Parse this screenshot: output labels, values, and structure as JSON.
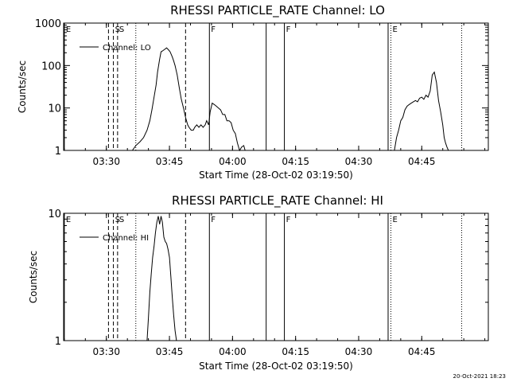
{
  "chart_data": [
    {
      "type": "line",
      "title": "RHESSI PARTICLE_RATE Channel: LO",
      "xlabel": "Start Time (28-Oct-02 03:19:50)",
      "ylabel": "Counts/sec",
      "yscale": "log",
      "ylim": [
        1,
        1000
      ],
      "xlim": [
        "03:19:50",
        "05:00:50"
      ],
      "x_ticks": [
        "03:30",
        "03:45",
        "04:00",
        "04:15",
        "04:30",
        "04:45"
      ],
      "y_ticks": [
        "1",
        "10",
        "100",
        "1000"
      ],
      "legend": "Channel: LO",
      "legend_position": "top-left",
      "markers": [
        {
          "time": "03:20:00",
          "style": "solid",
          "label": "E"
        },
        {
          "time": "03:30:30",
          "style": "dashed",
          "label": ""
        },
        {
          "time": "03:31:40",
          "style": "dashed",
          "label": "S"
        },
        {
          "time": "03:32:40",
          "style": "dashed",
          "label": "S"
        },
        {
          "time": "03:37:00",
          "style": "dotted",
          "label": ""
        },
        {
          "time": "03:48:50",
          "style": "dashed",
          "label": ""
        },
        {
          "time": "03:54:30",
          "style": "solid",
          "label": "F"
        },
        {
          "time": "04:08:00",
          "style": "solid",
          "label": ""
        },
        {
          "time": "04:12:20",
          "style": "solid",
          "label": "F"
        },
        {
          "time": "04:37:00",
          "style": "solid",
          "label": ""
        },
        {
          "time": "04:37:40",
          "style": "dotted",
          "label": "E"
        },
        {
          "time": "04:54:30",
          "style": "dotted",
          "label": ""
        }
      ],
      "series": [
        {
          "name": "Channel: LO",
          "segments": [
            {
              "time": [
                "03:36:10",
                "03:37:00",
                "03:38:00",
                "03:38:50",
                "03:39:40",
                "03:40:20",
                "03:40:50",
                "03:41:20",
                "03:41:50",
                "03:42:10",
                "03:42:40",
                "03:43:00",
                "03:43:20",
                "03:43:50",
                "03:44:20",
                "03:44:50",
                "03:45:10",
                "03:45:40",
                "03:46:00",
                "03:46:20",
                "03:46:50",
                "03:47:20",
                "03:47:50",
                "03:48:20",
                "03:48:50",
                "03:49:20",
                "03:49:40",
                "03:50:10",
                "03:50:40",
                "03:51:00",
                "03:51:30",
                "03:52:00",
                "03:52:30",
                "03:53:00",
                "03:53:30",
                "03:53:50",
                "03:54:20"
              ],
              "counts": [
                1,
                1.3,
                1.6,
                2,
                3,
                5,
                9,
                18,
                35,
                70,
                140,
                210,
                220,
                240,
                260,
                230,
                210,
                160,
                130,
                100,
                60,
                30,
                16,
                10,
                6,
                4,
                3.5,
                3,
                3,
                3.5,
                4,
                3.5,
                4,
                3.5,
                4,
                5,
                4
              ]
            },
            {
              "time": [
                "03:54:20",
                "03:54:40",
                "03:55:10",
                "03:55:40",
                "03:56:10",
                "03:56:40",
                "03:57:10",
                "03:57:40",
                "03:58:10",
                "03:58:40",
                "03:59:10",
                "03:59:40",
                "04:00:10",
                "04:00:40",
                "04:01:10",
                "04:01:40",
                "04:02:10",
                "04:02:40",
                "04:03:00"
              ],
              "counts": [
                4,
                8,
                13,
                12,
                11,
                10,
                9,
                7,
                7,
                5,
                5,
                4.5,
                3,
                2.5,
                1.5,
                1,
                1.2,
                1.3,
                1
              ]
            },
            {
              "time": [
                "04:38:30",
                "04:39:00",
                "04:39:30",
                "04:40:00",
                "04:40:30",
                "04:41:00",
                "04:41:30",
                "04:42:00",
                "04:42:30",
                "04:43:00",
                "04:43:30",
                "04:44:00",
                "04:44:30",
                "04:45:00",
                "04:45:30",
                "04:46:00",
                "04:46:30",
                "04:47:00",
                "04:47:30",
                "04:48:00",
                "04:48:30",
                "04:49:00",
                "04:49:30",
                "04:50:00",
                "04:50:20",
                "04:50:40",
                "04:51:00",
                "04:51:20"
              ],
              "counts": [
                1,
                2,
                3,
                5,
                6,
                9,
                11,
                12,
                13,
                14,
                15,
                14,
                17,
                18,
                16,
                20,
                18,
                25,
                60,
                70,
                40,
                15,
                8,
                4,
                2,
                1.5,
                1.2,
                1
              ]
            }
          ]
        }
      ]
    },
    {
      "type": "line",
      "title": "RHESSI PARTICLE_RATE Channel: HI",
      "xlabel": "Start Time (28-Oct-02 03:19:50)",
      "ylabel": "Counts/sec",
      "yscale": "log",
      "ylim": [
        1,
        10
      ],
      "xlim": [
        "03:19:50",
        "05:00:50"
      ],
      "x_ticks": [
        "03:30",
        "03:45",
        "04:00",
        "04:15",
        "04:30",
        "04:45"
      ],
      "y_ticks": [
        "1",
        "10"
      ],
      "legend": "Channel: HI",
      "legend_position": "top-left",
      "markers": [
        {
          "time": "03:20:00",
          "style": "solid",
          "label": "E"
        },
        {
          "time": "03:30:30",
          "style": "dashed",
          "label": ""
        },
        {
          "time": "03:31:40",
          "style": "dashed",
          "label": "S"
        },
        {
          "time": "03:32:40",
          "style": "dashed",
          "label": "S"
        },
        {
          "time": "03:37:00",
          "style": "dotted",
          "label": ""
        },
        {
          "time": "03:48:50",
          "style": "dashed",
          "label": ""
        },
        {
          "time": "03:54:30",
          "style": "solid",
          "label": "F"
        },
        {
          "time": "04:08:00",
          "style": "solid",
          "label": ""
        },
        {
          "time": "04:12:20",
          "style": "solid",
          "label": "F"
        },
        {
          "time": "04:37:00",
          "style": "solid",
          "label": ""
        },
        {
          "time": "04:37:40",
          "style": "dotted",
          "label": "E"
        },
        {
          "time": "04:54:30",
          "style": "dotted",
          "label": ""
        }
      ],
      "series": [
        {
          "name": "Channel: HI",
          "segments": [
            {
              "time": [
                "03:39:40",
                "03:40:00",
                "03:40:20",
                "03:40:40",
                "03:41:00",
                "03:41:20",
                "03:41:40",
                "03:42:00",
                "03:42:20",
                "03:42:40",
                "03:43:00",
                "03:43:20",
                "03:43:40",
                "03:44:00",
                "03:44:20",
                "03:44:40",
                "03:45:00",
                "03:45:20",
                "03:45:40",
                "03:46:00",
                "03:46:20",
                "03:46:40"
              ],
              "counts": [
                1,
                1.5,
                2.4,
                3.3,
                4.5,
                5.5,
                7,
                8.5,
                9.5,
                8.2,
                9.5,
                8.5,
                6.5,
                6,
                5.8,
                5.2,
                4.5,
                3.2,
                2.2,
                1.6,
                1.2,
                1
              ]
            }
          ]
        }
      ]
    }
  ],
  "footer_timestamp": "20-Oct-2021 18:23"
}
